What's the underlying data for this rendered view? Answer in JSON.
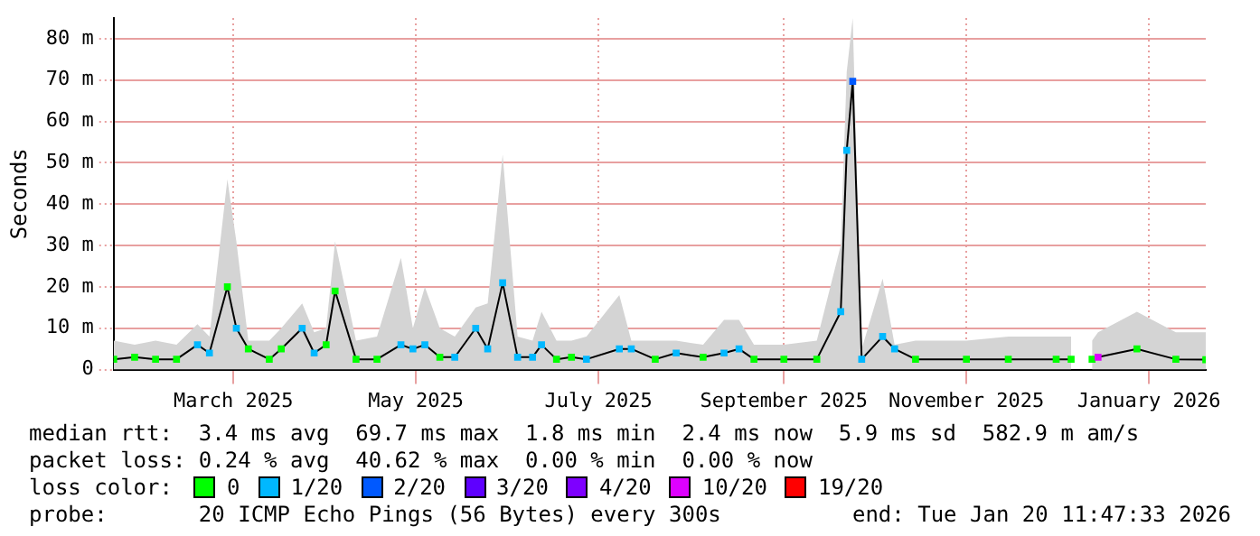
{
  "chart_data": {
    "type": "line",
    "ylabel": "Seconds",
    "legend": "bottom",
    "legend_title": "loss color:",
    "grid": true,
    "xlim": [
      "2025-01-20",
      "2026-01-20"
    ],
    "xticks": [
      {
        "value": "2025-03-01",
        "label": "March 2025"
      },
      {
        "value": "2025-05-01",
        "label": "May 2025"
      },
      {
        "value": "2025-07-01",
        "label": "July 2025"
      },
      {
        "value": "2025-09-01",
        "label": "September 2025"
      },
      {
        "value": "2025-11-01",
        "label": "November 2025"
      },
      {
        "value": "2026-01-01",
        "label": "January 2026"
      }
    ],
    "ylim": [
      0,
      85
    ],
    "yticks": [
      0,
      {
        "value": 10,
        "label": "10 m"
      },
      {
        "value": 20,
        "label": "20 m"
      },
      {
        "value": 30,
        "label": "30 m"
      },
      {
        "value": 40,
        "label": "40 m"
      },
      {
        "value": 50,
        "label": "50 m"
      },
      {
        "value": 60,
        "label": "60 m"
      },
      {
        "value": 70,
        "label": "70 m"
      },
      {
        "value": 80,
        "label": "80 m"
      }
    ],
    "x": [
      "2025-01-20",
      "2025-01-27",
      "2025-02-03",
      "2025-02-10",
      "2025-02-17",
      "2025-02-21",
      "2025-02-27",
      "2025-03-02",
      "2025-03-06",
      "2025-03-13",
      "2025-03-17",
      "2025-03-24",
      "2025-03-28",
      "2025-04-01",
      "2025-04-04",
      "2025-04-11",
      "2025-04-18",
      "2025-04-26",
      "2025-04-30",
      "2025-05-04",
      "2025-05-09",
      "2025-05-14",
      "2025-05-21",
      "2025-05-25",
      "2025-05-30",
      "2025-06-04",
      "2025-06-09",
      "2025-06-12",
      "2025-06-17",
      "2025-06-22",
      "2025-06-27",
      "2025-07-08",
      "2025-07-12",
      "2025-07-20",
      "2025-07-27",
      "2025-08-05",
      "2025-08-12",
      "2025-08-17",
      "2025-08-22",
      "2025-09-01",
      "2025-09-12",
      "2025-09-20",
      "2025-09-22",
      "2025-09-24",
      "2025-09-27",
      "2025-10-04",
      "2025-10-08",
      "2025-10-15",
      "2025-11-01",
      "2025-11-15",
      "2025-12-01",
      "2025-12-06",
      "2025-12-07",
      "2025-12-12",
      "2025-12-13",
      "2025-12-15",
      "2025-12-28",
      "2026-01-10",
      "2026-01-20"
    ],
    "series": [
      {
        "type": "area",
        "color": "#d4d4d4",
        "values": [
          7,
          6,
          7,
          6,
          11,
          8,
          46,
          31,
          7,
          7,
          10,
          16,
          9,
          10,
          31,
          7,
          8,
          27,
          10,
          20,
          10,
          8,
          15,
          16,
          52,
          8,
          7,
          14,
          7,
          7,
          8,
          18,
          7,
          7,
          7,
          6,
          12,
          12,
          6,
          6,
          7,
          30,
          72,
          85,
          5,
          22,
          6,
          7,
          7,
          8,
          8,
          8,
          null,
          null,
          7,
          9,
          14,
          9,
          9
        ]
      },
      {
        "type": "line",
        "color": "#000000",
        "values": [
          2.5,
          3,
          2.5,
          2.5,
          6,
          4,
          20,
          10,
          5,
          2.5,
          5,
          10,
          4,
          6,
          19,
          2.5,
          2.5,
          6,
          5,
          6,
          3,
          3,
          10,
          5,
          21,
          3,
          3,
          6,
          2.5,
          3,
          2.5,
          5,
          5,
          2.5,
          4,
          3,
          4,
          5,
          2.5,
          2.5,
          2.5,
          14,
          53,
          69.7,
          2.5,
          8,
          5,
          2.5,
          2.5,
          2.5,
          2.5,
          2.5,
          null,
          null,
          2.5,
          3,
          5,
          2.5,
          2.4
        ]
      },
      {
        "type": "scatter",
        "marker": "square",
        "name": "0",
        "color": "#00ff00",
        "x": [
          "2025-01-20",
          "2025-01-27",
          "2025-02-03",
          "2025-02-10",
          "2025-02-27",
          "2025-03-06",
          "2025-03-13",
          "2025-03-17",
          "2025-04-01",
          "2025-04-04",
          "2025-04-11",
          "2025-04-18",
          "2025-05-09",
          "2025-06-17",
          "2025-06-22",
          "2025-07-20",
          "2025-08-05",
          "2025-08-22",
          "2025-09-01",
          "2025-09-12",
          "2025-10-15",
          "2025-11-01",
          "2025-11-15",
          "2025-12-01",
          "2025-12-06",
          "2025-12-13",
          "2025-12-28",
          "2026-01-10",
          "2026-01-20"
        ],
        "values": [
          2.5,
          3,
          2.5,
          2.5,
          20,
          5,
          2.5,
          5,
          6,
          19,
          2.5,
          2.5,
          3,
          2.5,
          3,
          2.5,
          3,
          2.5,
          2.5,
          2.5,
          2.5,
          2.5,
          2.5,
          2.5,
          2.5,
          2.5,
          5,
          2.5,
          2.4
        ]
      },
      {
        "type": "scatter",
        "marker": "square",
        "name": "1/20",
        "color": "#00b8ff",
        "x": [
          "2025-02-17",
          "2025-02-21",
          "2025-03-02",
          "2025-03-24",
          "2025-03-28",
          "2025-04-26",
          "2025-04-30",
          "2025-05-04",
          "2025-05-14",
          "2025-05-21",
          "2025-05-25",
          "2025-05-30",
          "2025-06-04",
          "2025-06-09",
          "2025-06-12",
          "2025-06-27",
          "2025-07-08",
          "2025-07-12",
          "2025-07-27",
          "2025-08-12",
          "2025-08-17",
          "2025-09-20",
          "2025-09-22",
          "2025-09-27",
          "2025-10-04",
          "2025-10-08"
        ],
        "values": [
          6,
          4,
          10,
          10,
          4,
          6,
          5,
          6,
          3,
          10,
          5,
          21,
          3,
          3,
          6,
          2.5,
          5,
          5,
          4,
          4,
          5,
          14,
          53,
          2.5,
          8,
          5
        ]
      },
      {
        "type": "scatter",
        "marker": "square",
        "name": "2/20",
        "color": "#0059ff",
        "x": [
          "2025-09-24"
        ],
        "values": [
          69.7
        ]
      },
      {
        "type": "scatter",
        "marker": "square",
        "name": "3/20",
        "color": "#5e00ff",
        "values": [
          null,
          null,
          null,
          null,
          null,
          null,
          null,
          null,
          null,
          null,
          null,
          null,
          null,
          null,
          null,
          null,
          null,
          null,
          null,
          null,
          null,
          null,
          null,
          null,
          null,
          null,
          null,
          null,
          null,
          null,
          null,
          null,
          null,
          null,
          null,
          null,
          null,
          null,
          null,
          null,
          null,
          null,
          null,
          null,
          null,
          null,
          null,
          null,
          null,
          null,
          null,
          null,
          null,
          null,
          null,
          null,
          null,
          null,
          null
        ]
      },
      {
        "type": "scatter",
        "marker": "square",
        "name": "4/20",
        "color": "#7e00ff",
        "values": [
          null,
          null,
          null,
          null,
          null,
          null,
          null,
          null,
          null,
          null,
          null,
          null,
          null,
          null,
          null,
          null,
          null,
          null,
          null,
          null,
          null,
          null,
          null,
          null,
          null,
          null,
          null,
          null,
          null,
          null,
          null,
          null,
          null,
          null,
          null,
          null,
          null,
          null,
          null,
          null,
          null,
          null,
          null,
          null,
          null,
          null,
          null,
          null,
          null,
          null,
          null,
          null,
          null,
          null,
          null,
          null,
          null,
          null,
          null
        ]
      },
      {
        "type": "scatter",
        "marker": "square",
        "name": "10/20",
        "color": "#dd00ff",
        "x": [
          "2025-12-15"
        ],
        "values": [
          3
        ]
      },
      {
        "type": "scatter",
        "marker": "square",
        "name": "19/20",
        "color": "#ff0000",
        "values": [
          null,
          null,
          null,
          null,
          null,
          null,
          null,
          null,
          null,
          null,
          null,
          null,
          null,
          null,
          null,
          null,
          null,
          null,
          null,
          null,
          null,
          null,
          null,
          null,
          null,
          null,
          null,
          null,
          null,
          null,
          null,
          null,
          null,
          null,
          null,
          null,
          null,
          null,
          null,
          null,
          null,
          null,
          null,
          null,
          null,
          null,
          null,
          null,
          null,
          null,
          null,
          null,
          null,
          null,
          null,
          null,
          null,
          null,
          null
        ]
      }
    ],
    "annotations": [
      "median rtt:  3.4 ms avg  69.7 ms max  1.8 ms min  2.4 ms now  5.9 ms sd  582.9 m am/s",
      "packet loss: 0.24 % avg  40.62 % max  0.00 % min  0.00 % now",
      "probe:       20 ICMP Echo Pings (56 Bytes) every 300s",
      "end: Tue Jan 20 11:47:33 2026"
    ]
  }
}
